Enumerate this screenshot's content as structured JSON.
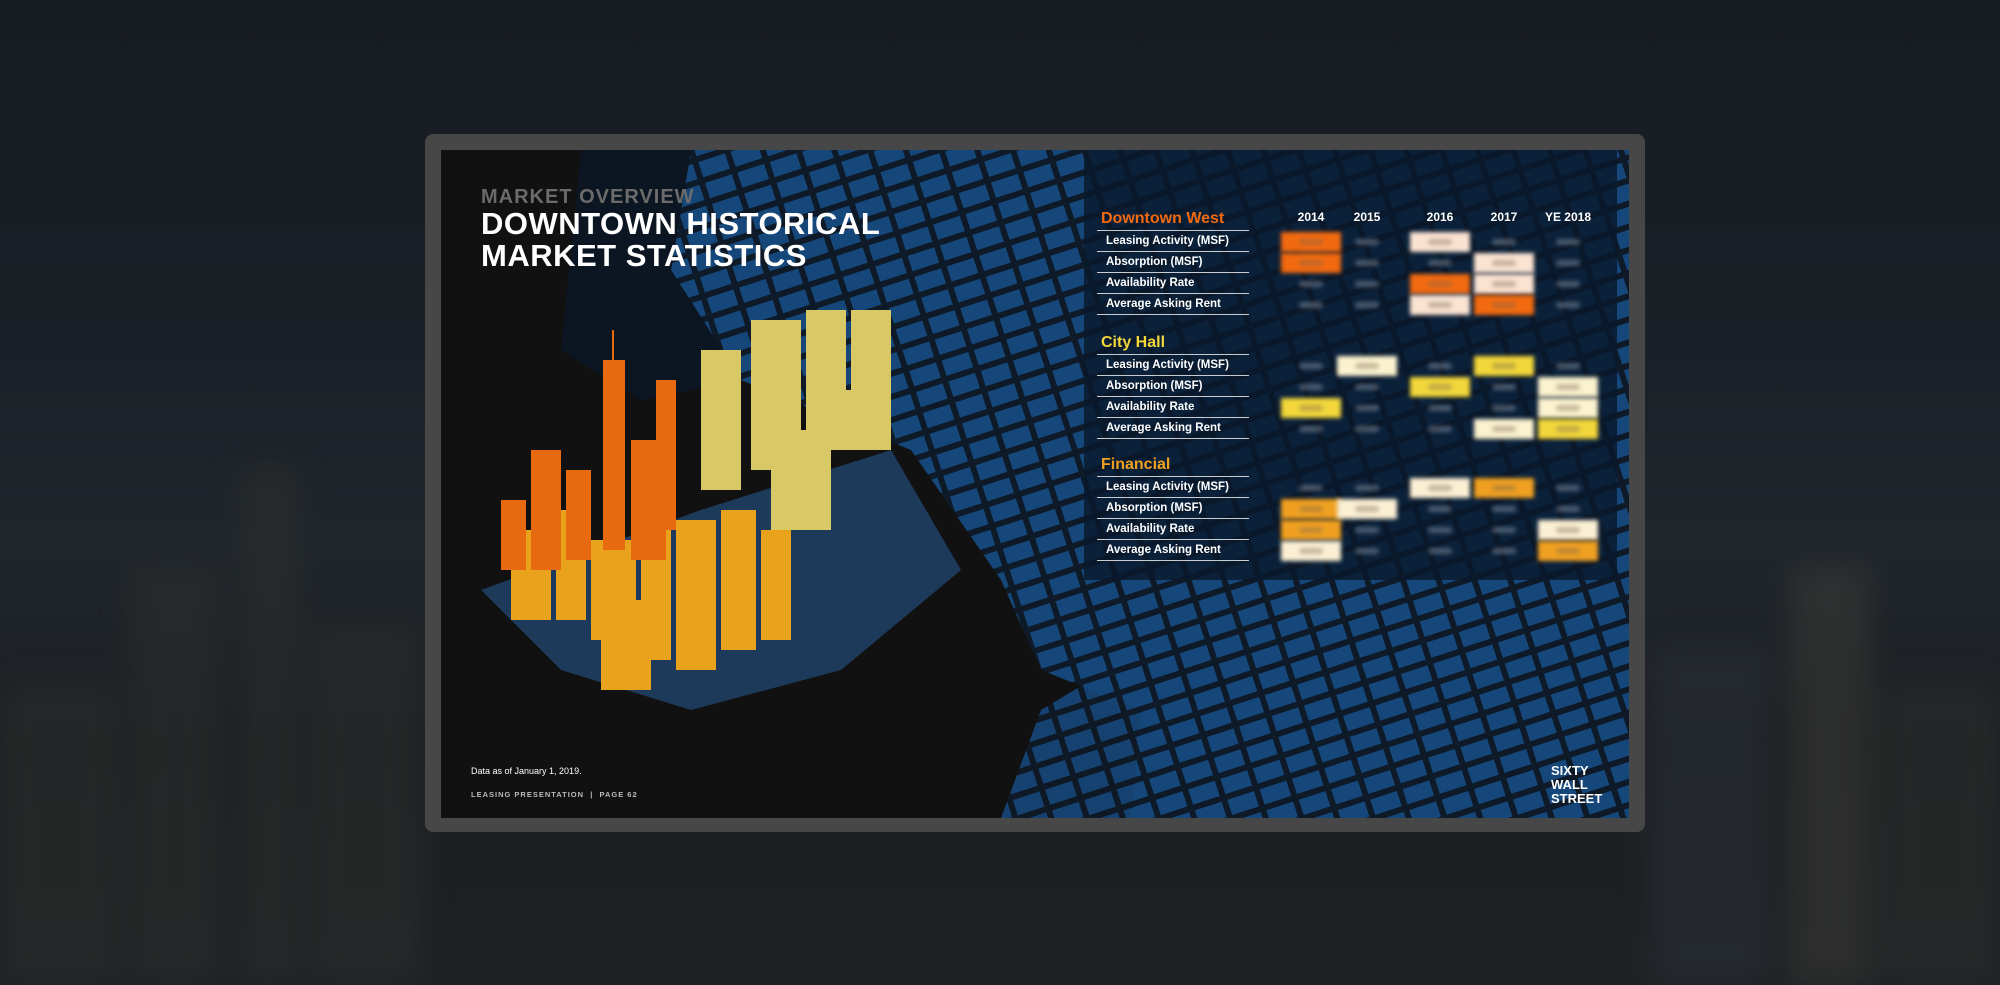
{
  "slide": {
    "eyebrow": "MARKET OVERVIEW",
    "title_line1": "DOWNTOWN HISTORICAL",
    "title_line2": "MARKET STATISTICS",
    "note": "Data as of January 1, 2019.",
    "footer": "LEASING PRESENTATION  |  PAGE 62",
    "logo": [
      "SIXTY",
      "WALL",
      "STREET"
    ]
  },
  "table": {
    "years": [
      "2014",
      "2015",
      "2016",
      "2017",
      "YE 2018"
    ],
    "row_labels": [
      "Leasing Activity (MSF)",
      "Absorption (MSF)",
      "Availability Rate",
      "Average Asking Rent"
    ],
    "sections": [
      {
        "name": "Downtown West",
        "color": "#f26a10",
        "highlights": [
          [
            "strong",
            "",
            "light",
            "",
            ""
          ],
          [
            "strong",
            "",
            "",
            "light",
            ""
          ],
          [
            "",
            "",
            "strong",
            "light",
            ""
          ],
          [
            "",
            "",
            "light",
            "strong",
            ""
          ]
        ]
      },
      {
        "name": "City Hall",
        "color": "#f2d63a",
        "highlights": [
          [
            "",
            "light",
            "",
            "strong",
            ""
          ],
          [
            "",
            "",
            "strong",
            "",
            "light"
          ],
          [
            "strong",
            "",
            "",
            "",
            "light"
          ],
          [
            "",
            "",
            "",
            "light",
            "strong"
          ]
        ]
      },
      {
        "name": "Financial",
        "color": "#f0a020",
        "highlights": [
          [
            "",
            "",
            "light",
            "strong",
            ""
          ],
          [
            "strong",
            "light",
            "",
            "",
            ""
          ],
          [
            "strong",
            "",
            "",
            "",
            "light"
          ],
          [
            "light",
            "",
            "",
            "",
            "strong"
          ]
        ]
      }
    ],
    "light_colors": [
      "#fbe3d2",
      "#fbf2cf",
      "#fbefd4"
    ]
  }
}
